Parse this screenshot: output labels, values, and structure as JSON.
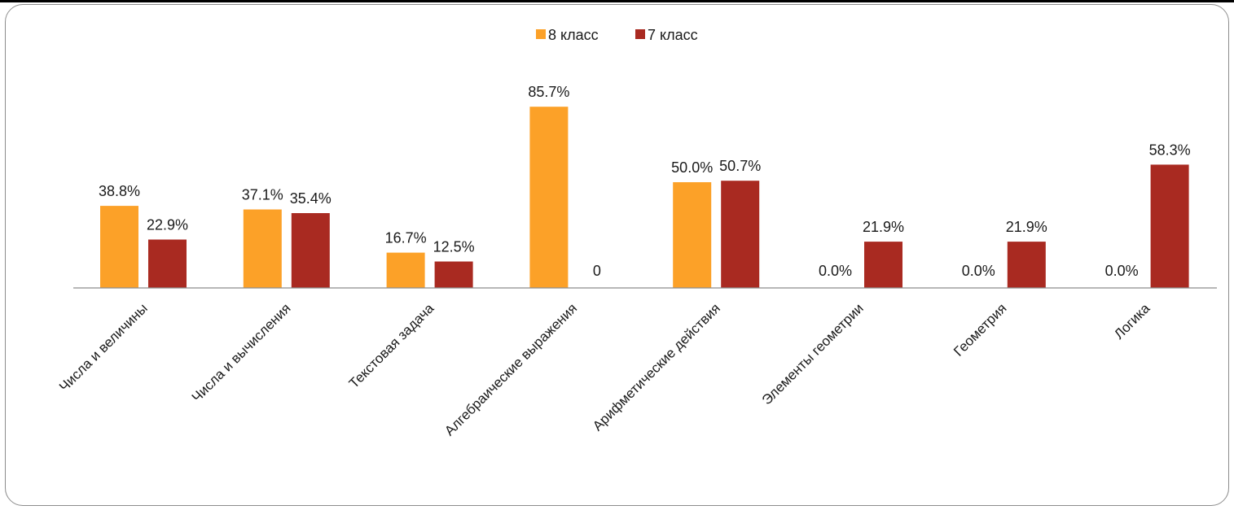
{
  "chart_data": {
    "type": "bar",
    "categories": [
      "Числа и величины",
      "Числа и вычисления",
      "Текстовая задача",
      "Алгебраические выражения",
      "Арифметические действия",
      "Элементы геометрии",
      "Геометрия",
      "Логика"
    ],
    "series": [
      {
        "name": "8 класс",
        "color": "#fca128",
        "values": [
          38.8,
          37.1,
          16.7,
          85.7,
          50.0,
          0.0,
          0.0,
          0.0
        ],
        "labels": [
          "38.8%",
          "37.1%",
          "16.7%",
          "85.7%",
          "50.0%",
          "0.0%",
          "0.0%",
          "0.0%"
        ]
      },
      {
        "name": "7 класс",
        "color": "#a92a21",
        "values": [
          22.9,
          35.4,
          12.5,
          0,
          50.7,
          21.9,
          21.9,
          58.3
        ],
        "labels": [
          "22.9%",
          "35.4%",
          "12.5%",
          "0",
          "50.7%",
          "21.9%",
          "21.9%",
          "58.3%"
        ]
      }
    ],
    "ylim": [
      0,
      100
    ],
    "grid": false,
    "legend": "top-center"
  }
}
